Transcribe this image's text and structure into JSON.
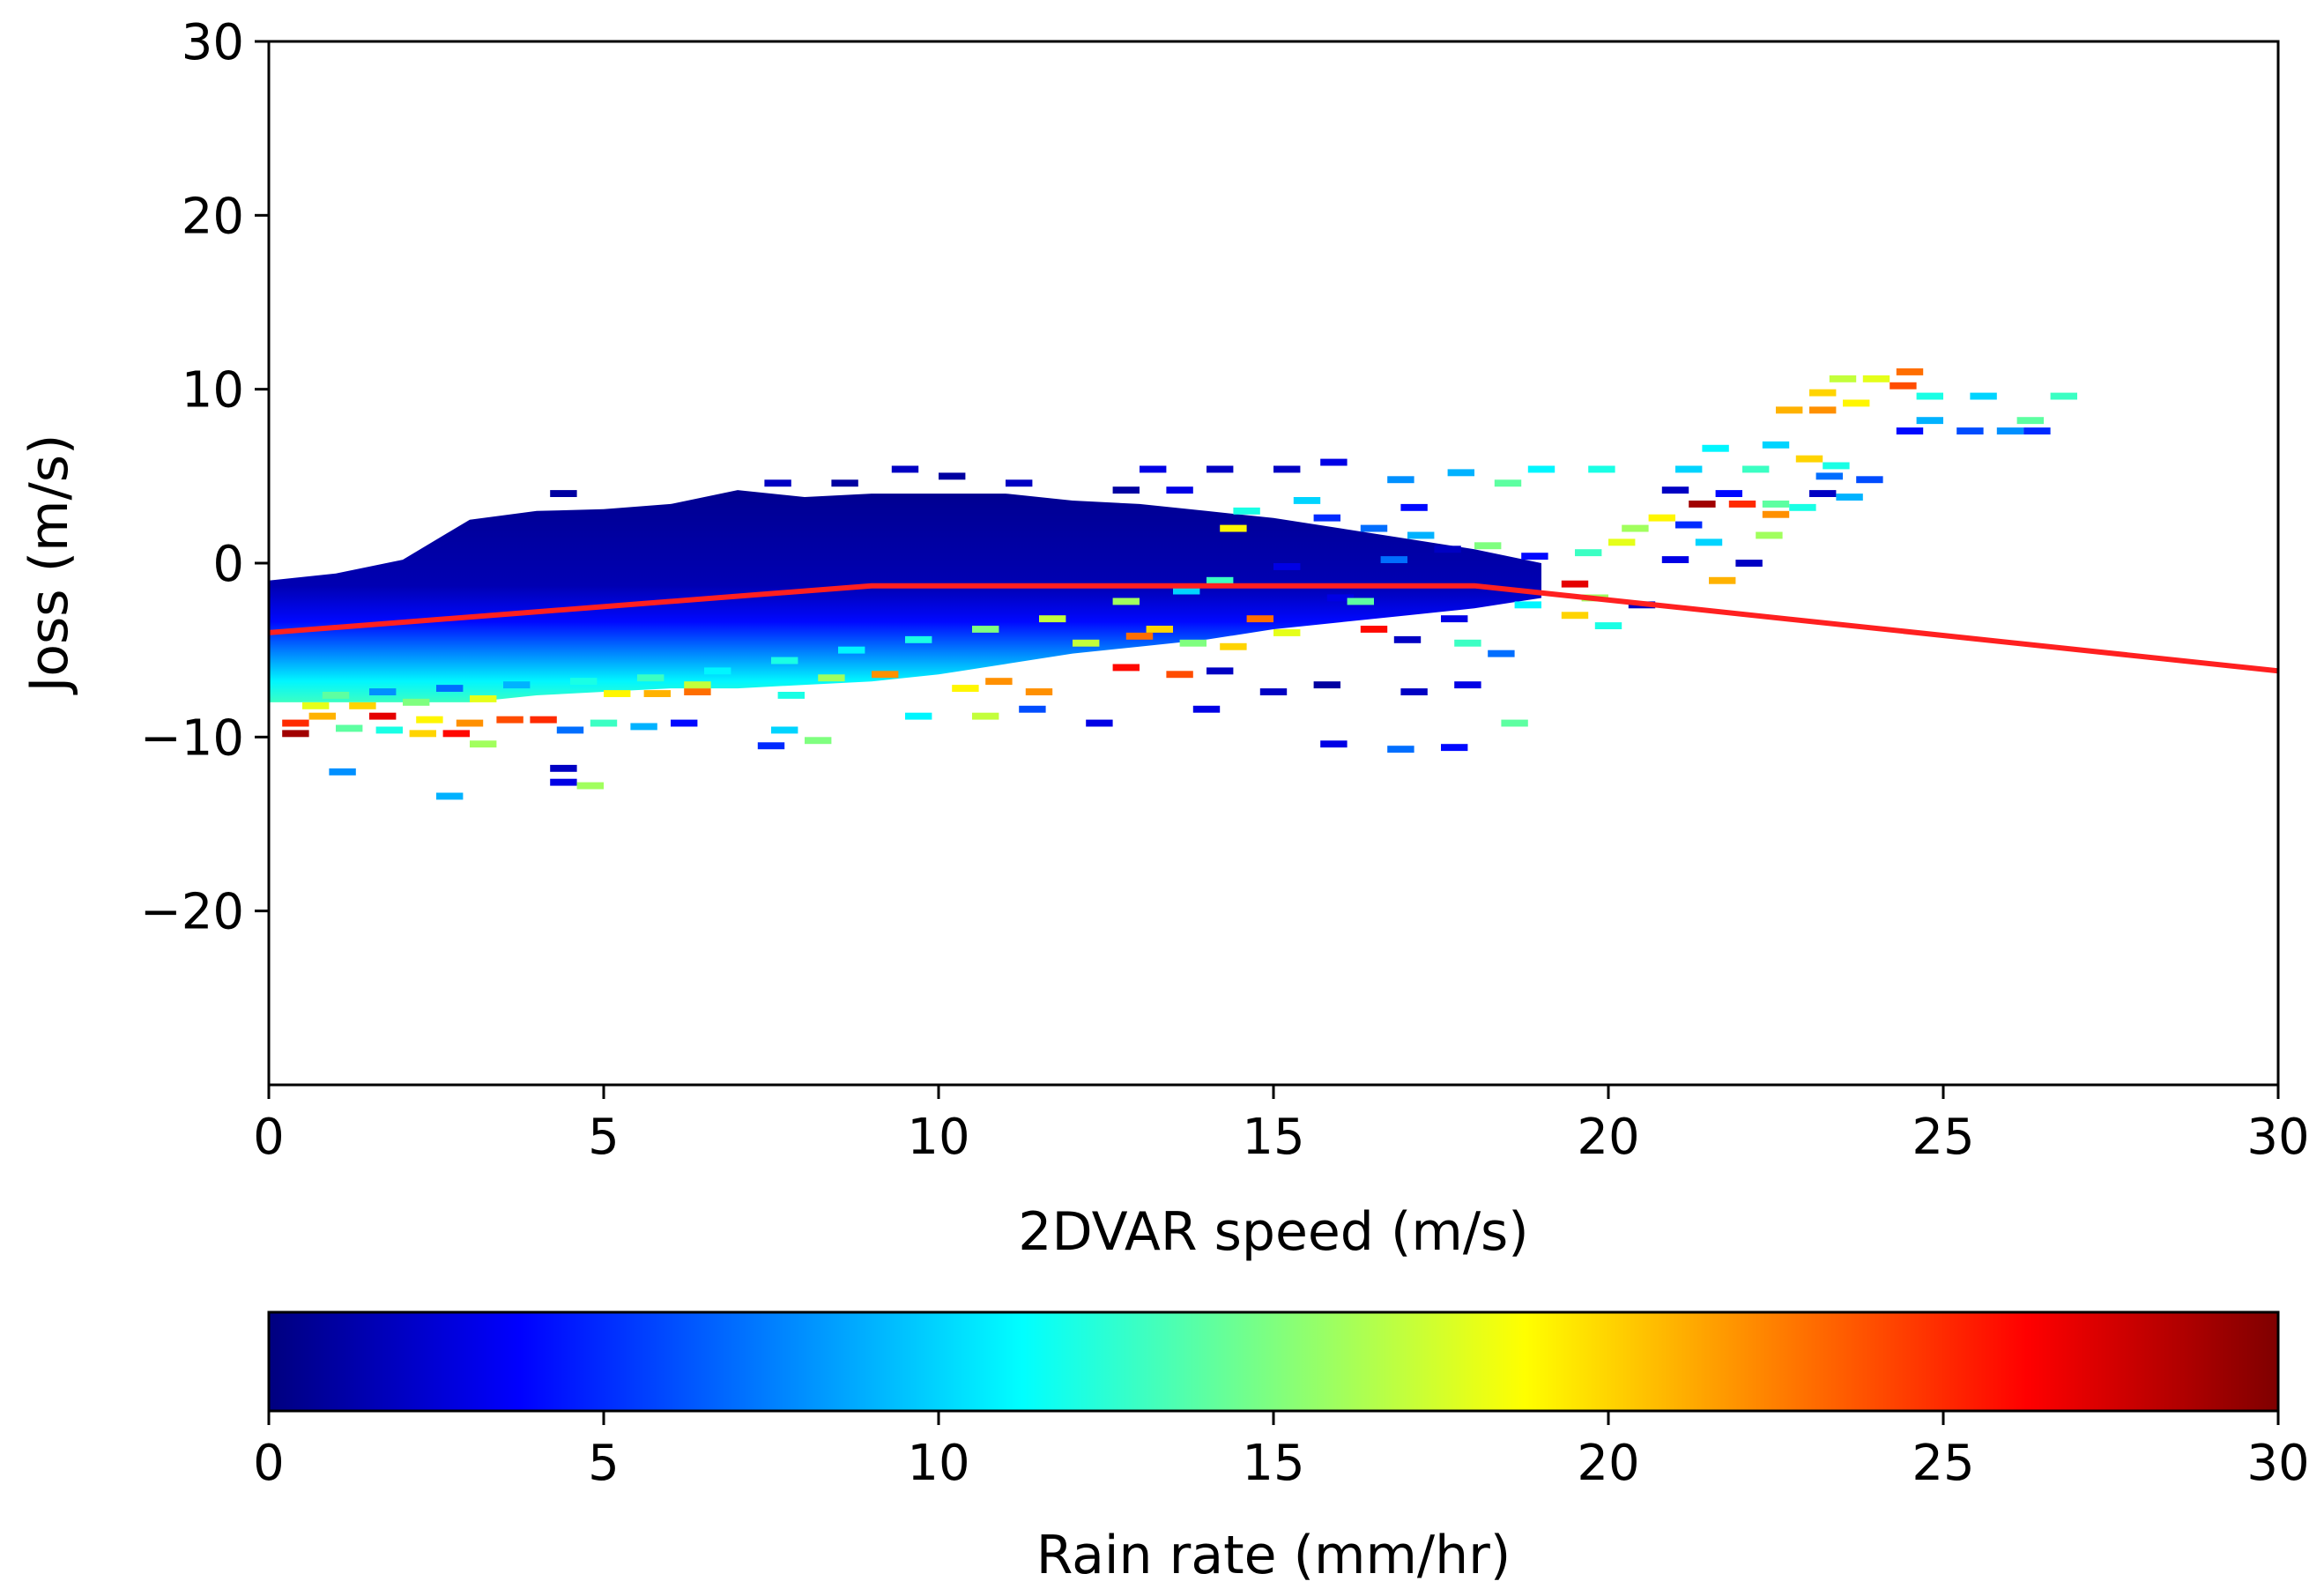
{
  "chart_data": {
    "type": "heatmap",
    "title": "",
    "xlabel": "2DVAR speed (m/s)",
    "ylabel": "Joss (m/s)",
    "xlim": [
      0,
      30
    ],
    "ylim": [
      -30,
      30
    ],
    "xticks": [
      0,
      5,
      10,
      15,
      20,
      25,
      30
    ],
    "xtick_labels": [
      "0",
      "5",
      "10",
      "15",
      "20",
      "25",
      "30"
    ],
    "yticks": [
      -20,
      -10,
      0,
      10,
      20,
      30
    ],
    "ytick_labels": [
      "−20",
      "−10",
      "0",
      "10",
      "20",
      "30"
    ],
    "bin_width": 0.4,
    "bin_height": 0.4,
    "colorbar": {
      "label": "Rain rate (mm/hr)",
      "range": [
        0,
        30
      ],
      "ticks": [
        0,
        5,
        10,
        15,
        20,
        25,
        30
      ],
      "tick_labels": [
        "0",
        "5",
        "10",
        "15",
        "20",
        "25",
        "30"
      ],
      "colormap": "jet",
      "stops": [
        "#00007f",
        "#0000ff",
        "#007fff",
        "#00ffff",
        "#7fff7f",
        "#ffff00",
        "#ff7f00",
        "#ff0000",
        "#7f0000"
      ]
    },
    "dense_region": {
      "description": "filled 2D histogram of binned rain rate",
      "upper_boundary": [
        [
          0,
          -1
        ],
        [
          1,
          -0.6
        ],
        [
          2,
          0.2
        ],
        [
          3,
          2.5
        ],
        [
          4,
          3
        ],
        [
          5,
          3.1
        ],
        [
          6,
          3.4
        ],
        [
          7,
          4.2
        ],
        [
          8,
          3.8
        ],
        [
          9,
          4
        ],
        [
          10,
          4
        ],
        [
          11,
          4
        ],
        [
          12,
          3.6
        ],
        [
          13,
          3.4
        ],
        [
          14,
          3
        ],
        [
          15,
          2.6
        ],
        [
          16,
          2
        ],
        [
          17,
          1.4
        ],
        [
          18,
          0.8
        ],
        [
          19,
          0
        ]
      ],
      "lower_boundary": [
        [
          0,
          -8
        ],
        [
          1,
          -8
        ],
        [
          2,
          -8
        ],
        [
          3,
          -8
        ],
        [
          4,
          -7.6
        ],
        [
          5,
          -7.4
        ],
        [
          6,
          -7.2
        ],
        [
          7,
          -7.2
        ],
        [
          8,
          -7
        ],
        [
          9,
          -6.8
        ],
        [
          10,
          -6.4
        ],
        [
          11,
          -5.8
        ],
        [
          12,
          -5.2
        ],
        [
          13,
          -4.8
        ],
        [
          14,
          -4.4
        ],
        [
          15,
          -3.8
        ],
        [
          16,
          -3.4
        ],
        [
          17,
          -3
        ],
        [
          18,
          -2.6
        ],
        [
          19,
          -2
        ]
      ]
    },
    "bins": [
      {
        "x": 1.5,
        "y": -8.8,
        "rr": 27
      },
      {
        "x": 0.6,
        "y": -8.8,
        "rr": 21
      },
      {
        "x": 2.2,
        "y": -9.0,
        "rr": 19
      },
      {
        "x": 2.8,
        "y": -9.2,
        "rr": 22
      },
      {
        "x": 3.4,
        "y": -9.0,
        "rr": 24
      },
      {
        "x": 3.9,
        "y": -9.0,
        "rr": 25
      },
      {
        "x": 1.0,
        "y": -9.5,
        "rr": 14
      },
      {
        "x": 1.6,
        "y": -9.6,
        "rr": 12
      },
      {
        "x": 2.1,
        "y": -9.8,
        "rr": 20
      },
      {
        "x": 2.6,
        "y": -9.8,
        "rr": 26
      },
      {
        "x": 3.0,
        "y": -10.4,
        "rr": 16
      },
      {
        "x": 4.3,
        "y": -9.6,
        "rr": 7
      },
      {
        "x": 4.8,
        "y": -9.2,
        "rr": 13
      },
      {
        "x": 5.4,
        "y": -9.4,
        "rr": 9
      },
      {
        "x": 6.0,
        "y": -9.2,
        "rr": 4
      },
      {
        "x": 7.3,
        "y": -10.5,
        "rr": 5
      },
      {
        "x": 7.5,
        "y": -9.6,
        "rr": 10
      },
      {
        "x": 8.0,
        "y": -10.2,
        "rr": 15
      },
      {
        "x": 9.5,
        "y": -8.8,
        "rr": 11
      },
      {
        "x": 10.5,
        "y": -8.8,
        "rr": 17
      },
      {
        "x": 11.2,
        "y": -8.4,
        "rr": 6
      },
      {
        "x": 12.2,
        "y": -9.2,
        "rr": 3
      },
      {
        "x": 13.8,
        "y": -8.4,
        "rr": 3
      },
      {
        "x": 14.8,
        "y": -7.4,
        "rr": 2
      },
      {
        "x": 15.6,
        "y": -7.0,
        "rr": 1
      },
      {
        "x": 16.9,
        "y": -7.4,
        "rr": 2
      },
      {
        "x": 17.7,
        "y": -7.0,
        "rr": 3
      },
      {
        "x": 18.4,
        "y": -9.2,
        "rr": 14
      },
      {
        "x": 15.7,
        "y": -10.4,
        "rr": 3
      },
      {
        "x": 16.7,
        "y": -10.7,
        "rr": 7
      },
      {
        "x": 17.5,
        "y": -10.6,
        "rr": 4
      },
      {
        "x": 0.9,
        "y": -12.0,
        "rr": 8
      },
      {
        "x": 2.5,
        "y": -13.4,
        "rr": 9
      },
      {
        "x": 4.2,
        "y": -12.6,
        "rr": 3
      },
      {
        "x": 4.6,
        "y": -12.8,
        "rr": 16
      },
      {
        "x": 4.2,
        "y": -11.8,
        "rr": 2
      },
      {
        "x": 0.2,
        "y": -9.8,
        "rr": 29
      },
      {
        "x": 0.2,
        "y": -9.2,
        "rr": 25
      },
      {
        "x": 0.5,
        "y": -8.2,
        "rr": 18
      },
      {
        "x": 5.0,
        "y": -7.5,
        "rr": 19
      },
      {
        "x": 5.6,
        "y": -7.5,
        "rr": 21
      },
      {
        "x": 6.2,
        "y": -7.4,
        "rr": 23
      },
      {
        "x": 7.6,
        "y": -7.6,
        "rr": 12
      },
      {
        "x": 10.2,
        "y": -7.2,
        "rr": 19
      },
      {
        "x": 11.3,
        "y": -7.4,
        "rr": 22
      },
      {
        "x": 12.6,
        "y": -6.0,
        "rr": 26
      },
      {
        "x": 13.4,
        "y": -6.4,
        "rr": 24
      },
      {
        "x": 14.0,
        "y": -6.2,
        "rr": 2
      },
      {
        "x": 10.7,
        "y": -6.8,
        "rr": 22
      },
      {
        "x": 14.2,
        "y": -4.8,
        "rr": 20
      },
      {
        "x": 15.0,
        "y": -4.0,
        "rr": 18
      },
      {
        "x": 14.6,
        "y": -3.2,
        "rr": 23
      },
      {
        "x": 16.3,
        "y": -3.8,
        "rr": 26
      },
      {
        "x": 16.8,
        "y": -4.4,
        "rr": 2
      },
      {
        "x": 17.7,
        "y": -4.6,
        "rr": 13
      },
      {
        "x": 18.2,
        "y": -5.2,
        "rr": 7
      },
      {
        "x": 19.3,
        "y": -3.0,
        "rr": 20
      },
      {
        "x": 19.8,
        "y": -3.6,
        "rr": 12
      },
      {
        "x": 17.5,
        "y": -3.2,
        "rr": 3
      },
      {
        "x": 18.6,
        "y": -2.4,
        "rr": 11
      },
      {
        "x": 15.8,
        "y": -2.0,
        "rr": 3
      },
      {
        "x": 16.1,
        "y": -2.2,
        "rr": 14
      },
      {
        "x": 19.6,
        "y": -2.0,
        "rr": 16
      },
      {
        "x": 20.3,
        "y": -2.4,
        "rr": 2
      },
      {
        "x": 21.5,
        "y": -1.0,
        "rr": 21
      },
      {
        "x": 19.3,
        "y": -1.2,
        "rr": 27
      },
      {
        "x": 18.7,
        "y": 0.4,
        "rr": 4
      },
      {
        "x": 19.5,
        "y": 0.6,
        "rr": 13
      },
      {
        "x": 20.0,
        "y": 1.2,
        "rr": 18
      },
      {
        "x": 20.2,
        "y": 2.0,
        "rr": 16
      },
      {
        "x": 20.6,
        "y": 2.6,
        "rr": 19
      },
      {
        "x": 21.0,
        "y": 2.2,
        "rr": 5
      },
      {
        "x": 21.2,
        "y": 3.4,
        "rr": 29
      },
      {
        "x": 21.8,
        "y": 3.4,
        "rr": 25
      },
      {
        "x": 20.8,
        "y": 0.2,
        "rr": 3
      },
      {
        "x": 21.3,
        "y": 1.2,
        "rr": 10
      },
      {
        "x": 21.9,
        "y": 0.0,
        "rr": 2
      },
      {
        "x": 22.2,
        "y": 1.6,
        "rr": 16
      },
      {
        "x": 22.3,
        "y": 2.8,
        "rr": 22
      },
      {
        "x": 22.7,
        "y": 3.2,
        "rr": 12
      },
      {
        "x": 22.3,
        "y": 3.4,
        "rr": 14
      },
      {
        "x": 23.0,
        "y": 4.0,
        "rr": 2
      },
      {
        "x": 23.4,
        "y": 3.8,
        "rr": 9
      },
      {
        "x": 23.1,
        "y": 5.0,
        "rr": 7
      },
      {
        "x": 23.7,
        "y": 4.8,
        "rr": 6
      },
      {
        "x": 23.2,
        "y": 5.6,
        "rr": 12
      },
      {
        "x": 22.3,
        "y": 6.8,
        "rr": 10
      },
      {
        "x": 22.8,
        "y": 6.0,
        "rr": 20
      },
      {
        "x": 22.0,
        "y": 5.4,
        "rr": 13
      },
      {
        "x": 21.4,
        "y": 6.6,
        "rr": 11
      },
      {
        "x": 22.5,
        "y": 8.8,
        "rr": 21
      },
      {
        "x": 23.0,
        "y": 8.8,
        "rr": 22
      },
      {
        "x": 23.5,
        "y": 9.2,
        "rr": 19
      },
      {
        "x": 23.3,
        "y": 10.6,
        "rr": 17
      },
      {
        "x": 23.8,
        "y": 10.6,
        "rr": 18
      },
      {
        "x": 24.2,
        "y": 10.2,
        "rr": 24
      },
      {
        "x": 24.3,
        "y": 11.0,
        "rr": 23
      },
      {
        "x": 23.0,
        "y": 9.8,
        "rr": 20
      },
      {
        "x": 24.6,
        "y": 9.6,
        "rr": 12
      },
      {
        "x": 25.4,
        "y": 9.6,
        "rr": 10
      },
      {
        "x": 26.6,
        "y": 9.6,
        "rr": 13
      },
      {
        "x": 24.3,
        "y": 7.6,
        "rr": 4
      },
      {
        "x": 24.6,
        "y": 8.2,
        "rr": 9
      },
      {
        "x": 25.2,
        "y": 7.6,
        "rr": 6
      },
      {
        "x": 25.8,
        "y": 7.6,
        "rr": 8
      },
      {
        "x": 26.2,
        "y": 7.6,
        "rr": 5
      },
      {
        "x": 26.1,
        "y": 8.2,
        "rr": 14
      },
      {
        "x": 21.6,
        "y": 4.0,
        "rr": 4
      },
      {
        "x": 20.8,
        "y": 4.2,
        "rr": 2
      },
      {
        "x": 18.3,
        "y": 4.6,
        "rr": 14
      },
      {
        "x": 19.7,
        "y": 5.4,
        "rr": 12
      },
      {
        "x": 18.8,
        "y": 5.4,
        "rr": 11
      },
      {
        "x": 21.0,
        "y": 5.4,
        "rr": 10
      },
      {
        "x": 17.6,
        "y": 5.2,
        "rr": 9
      },
      {
        "x": 16.7,
        "y": 4.8,
        "rr": 8
      },
      {
        "x": 15.7,
        "y": 5.8,
        "rr": 3
      },
      {
        "x": 15.0,
        "y": 5.4,
        "rr": 2
      },
      {
        "x": 14.0,
        "y": 5.4,
        "rr": 2
      },
      {
        "x": 13.4,
        "y": 4.2,
        "rr": 3
      },
      {
        "x": 13.0,
        "y": 5.4,
        "rr": 3
      },
      {
        "x": 12.6,
        "y": 4.2,
        "rr": 1
      },
      {
        "x": 11.0,
        "y": 4.6,
        "rr": 2
      },
      {
        "x": 10.0,
        "y": 5.0,
        "rr": 1
      },
      {
        "x": 9.3,
        "y": 5.4,
        "rr": 2
      },
      {
        "x": 8.4,
        "y": 4.6,
        "rr": 1
      },
      {
        "x": 7.4,
        "y": 4.6,
        "rr": 2
      },
      {
        "x": 4.2,
        "y": 4.0,
        "rr": 1
      },
      {
        "x": 15.3,
        "y": 3.6,
        "rr": 10
      },
      {
        "x": 16.9,
        "y": 3.2,
        "rr": 4
      },
      {
        "x": 14.4,
        "y": 3.0,
        "rr": 12
      },
      {
        "x": 14.2,
        "y": 2.0,
        "rr": 19
      },
      {
        "x": 15.6,
        "y": 2.6,
        "rr": 5
      },
      {
        "x": 16.3,
        "y": 2.0,
        "rr": 7
      },
      {
        "x": 17.0,
        "y": 1.6,
        "rr": 9
      },
      {
        "x": 18.0,
        "y": 1.0,
        "rr": 15
      },
      {
        "x": 17.4,
        "y": 0.8,
        "rr": 2
      },
      {
        "x": 16.6,
        "y": 0.2,
        "rr": 7
      },
      {
        "x": 15.0,
        "y": -0.2,
        "rr": 3
      },
      {
        "x": 14.0,
        "y": -1.0,
        "rr": 13
      },
      {
        "x": 13.5,
        "y": -1.6,
        "rr": 10
      },
      {
        "x": 12.6,
        "y": -2.2,
        "rr": 16
      },
      {
        "x": 11.5,
        "y": -3.2,
        "rr": 17
      },
      {
        "x": 10.5,
        "y": -3.8,
        "rr": 15
      },
      {
        "x": 9.5,
        "y": -4.4,
        "rr": 12
      },
      {
        "x": 8.5,
        "y": -5.0,
        "rr": 11
      },
      {
        "x": 7.5,
        "y": -5.6,
        "rr": 12
      },
      {
        "x": 6.5,
        "y": -6.2,
        "rr": 11
      },
      {
        "x": 5.5,
        "y": -6.6,
        "rr": 13
      },
      {
        "x": 4.5,
        "y": -6.8,
        "rr": 12
      },
      {
        "x": 3.5,
        "y": -7.0,
        "rr": 9
      },
      {
        "x": 2.5,
        "y": -7.2,
        "rr": 7
      },
      {
        "x": 1.5,
        "y": -7.4,
        "rr": 8
      },
      {
        "x": 0.8,
        "y": -7.6,
        "rr": 14
      },
      {
        "x": 12.0,
        "y": -4.6,
        "rr": 17
      },
      {
        "x": 13.1,
        "y": -3.8,
        "rr": 20
      },
      {
        "x": 13.6,
        "y": -4.6,
        "rr": 15
      },
      {
        "x": 9.0,
        "y": -6.4,
        "rr": 22
      },
      {
        "x": 8.2,
        "y": -6.6,
        "rr": 16
      },
      {
        "x": 6.2,
        "y": -7.0,
        "rr": 17
      },
      {
        "x": 3.0,
        "y": -7.8,
        "rr": 18
      },
      {
        "x": 2.0,
        "y": -8.0,
        "rr": 15
      },
      {
        "x": 1.2,
        "y": -8.2,
        "rr": 20
      },
      {
        "x": 12.8,
        "y": -4.2,
        "rr": 23
      }
    ],
    "series": [
      {
        "name": "fit",
        "type": "line",
        "color": "#ff2020",
        "x": [
          0,
          9,
          18,
          30
        ],
        "y": [
          -4.0,
          -1.3,
          -1.3,
          -6.2
        ]
      }
    ]
  }
}
